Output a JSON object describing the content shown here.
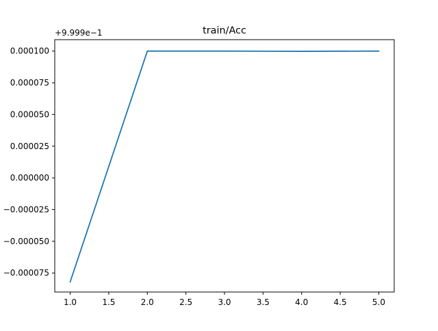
{
  "chart_data": {
    "type": "line",
    "title": "train/Acc",
    "offset_label": "+9.999e−1",
    "xlabel": "",
    "ylabel": "",
    "grid": false,
    "xlim": [
      0.8,
      5.2
    ],
    "ylim": [
      -9e-05,
      0.000109
    ],
    "x_ticks": [
      1.0,
      1.5,
      2.0,
      2.5,
      3.0,
      3.5,
      4.0,
      4.5,
      5.0
    ],
    "x_tick_labels": [
      "1.0",
      "1.5",
      "2.0",
      "2.5",
      "3.0",
      "3.5",
      "4.0",
      "4.5",
      "5.0"
    ],
    "y_ticks": [
      -7.5e-05,
      -5e-05,
      -2.5e-05,
      0.0,
      2.5e-05,
      5e-05,
      7.5e-05,
      0.0001
    ],
    "y_tick_labels": [
      "−0.000075",
      "−0.000050",
      "−0.000025",
      "0.000000",
      "0.000025",
      "0.000050",
      "0.000075",
      "0.000100"
    ],
    "series": [
      {
        "color": "#1f77b4",
        "x": [
          1,
          2,
          3,
          4,
          5
        ],
        "y": [
          -8.2e-05,
          0.0001,
          0.0001,
          9.98e-05,
          0.0001
        ]
      }
    ]
  }
}
